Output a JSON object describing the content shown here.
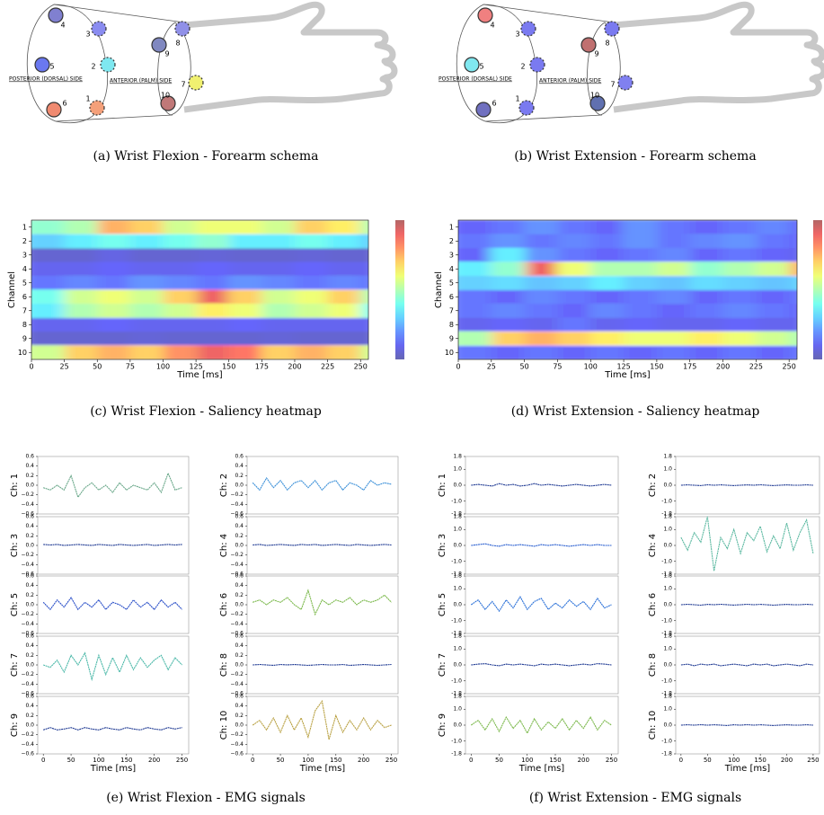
{
  "schemas": [
    {
      "caption": "(a) Wrist Flexion - Forearm schema",
      "posterior_label": "POSTERIOR (DORSAL) SIDE",
      "anterior_label": "ANTERIOR (PALM) SIDE",
      "electrodes": [
        {
          "label": "1",
          "color": "#f4a07a"
        },
        {
          "label": "2",
          "color": "#7ee8f0"
        },
        {
          "label": "3",
          "color": "#8a8cf0"
        },
        {
          "label": "4",
          "color": "#8080d0"
        },
        {
          "label": "5",
          "color": "#6a78f0"
        },
        {
          "label": "6",
          "color": "#f08a70"
        },
        {
          "label": "7",
          "color": "#f0f070"
        },
        {
          "label": "8",
          "color": "#9090e8"
        },
        {
          "label": "9",
          "color": "#8088c0"
        },
        {
          "label": "10",
          "color": "#c07878"
        }
      ]
    },
    {
      "caption": "(b) Wrist Extension - Forearm schema",
      "posterior_label": "POSTERIOR (DORSAL) SIDE",
      "anterior_label": "ANTERIOR (PALM) SIDE",
      "electrodes": [
        {
          "label": "1",
          "color": "#7a7af0"
        },
        {
          "label": "2",
          "color": "#7a7af0"
        },
        {
          "label": "3",
          "color": "#7a7af0"
        },
        {
          "label": "4",
          "color": "#f08080"
        },
        {
          "label": "5",
          "color": "#80e8f0"
        },
        {
          "label": "6",
          "color": "#7070c0"
        },
        {
          "label": "7",
          "color": "#8080f0"
        },
        {
          "label": "8",
          "color": "#7a7af0"
        },
        {
          "label": "9",
          "color": "#c07070"
        },
        {
          "label": "10",
          "color": "#6070b0"
        }
      ]
    }
  ],
  "chart_data": [
    {
      "type": "heatmap",
      "caption": "(c) Wrist Flexion - Saliency heatmap",
      "xlabel": "Time [ms]",
      "ylabel": "Channel",
      "colormap": "jet",
      "zlim": [
        0,
        1
      ],
      "categories": [
        "1",
        "2",
        "3",
        "4",
        "5",
        "6",
        "7",
        "8",
        "9",
        "10"
      ],
      "x": [
        0,
        25,
        50,
        75,
        100,
        125,
        150,
        175,
        200,
        225,
        250
      ],
      "xlim": [
        0,
        256
      ],
      "xticks": [
        0,
        25,
        50,
        75,
        100,
        125,
        150,
        175,
        200,
        225,
        250
      ],
      "z": [
        [
          0.45,
          0.5,
          0.75,
          0.7,
          0.55,
          0.6,
          0.6,
          0.55,
          0.7,
          0.65,
          0.5
        ],
        [
          0.3,
          0.35,
          0.4,
          0.35,
          0.4,
          0.45,
          0.35,
          0.35,
          0.4,
          0.35,
          0.3
        ],
        [
          0.05,
          0.05,
          0.08,
          0.05,
          0.05,
          0.06,
          0.05,
          0.05,
          0.06,
          0.05,
          0.05
        ],
        [
          0.1,
          0.1,
          0.12,
          0.1,
          0.1,
          0.12,
          0.1,
          0.1,
          0.12,
          0.1,
          0.1
        ],
        [
          0.15,
          0.18,
          0.15,
          0.2,
          0.18,
          0.15,
          0.2,
          0.18,
          0.15,
          0.18,
          0.15
        ],
        [
          0.4,
          0.55,
          0.6,
          0.55,
          0.7,
          0.9,
          0.7,
          0.55,
          0.6,
          0.7,
          0.5
        ],
        [
          0.35,
          0.5,
          0.55,
          0.5,
          0.55,
          0.65,
          0.6,
          0.5,
          0.55,
          0.6,
          0.4
        ],
        [
          0.1,
          0.1,
          0.12,
          0.1,
          0.1,
          0.1,
          0.12,
          0.1,
          0.1,
          0.1,
          0.1
        ],
        [
          0.05,
          0.05,
          0.05,
          0.06,
          0.05,
          0.05,
          0.05,
          0.06,
          0.05,
          0.05,
          0.05
        ],
        [
          0.55,
          0.7,
          0.75,
          0.7,
          0.8,
          0.9,
          0.85,
          0.7,
          0.75,
          0.7,
          0.55
        ]
      ]
    },
    {
      "type": "heatmap",
      "caption": "(d) Wrist Extension - Saliency heatmap",
      "xlabel": "Time [ms]",
      "ylabel": "Channel",
      "colormap": "jet",
      "zlim": [
        0,
        1
      ],
      "categories": [
        "1",
        "2",
        "3",
        "4",
        "5",
        "6",
        "7",
        "8",
        "9",
        "10"
      ],
      "x": [
        0,
        25,
        50,
        75,
        100,
        125,
        150,
        175,
        200,
        225,
        250
      ],
      "xlim": [
        0,
        256
      ],
      "xticks": [
        0,
        25,
        50,
        75,
        100,
        125,
        150,
        175,
        200,
        225,
        250
      ],
      "z": [
        [
          0.12,
          0.15,
          0.2,
          0.15,
          0.12,
          0.2,
          0.15,
          0.12,
          0.15,
          0.18,
          0.12
        ],
        [
          0.15,
          0.2,
          0.15,
          0.18,
          0.15,
          0.2,
          0.15,
          0.18,
          0.2,
          0.15,
          0.12
        ],
        [
          0.12,
          0.35,
          0.2,
          0.15,
          0.12,
          0.15,
          0.18,
          0.12,
          0.15,
          0.12,
          0.1
        ],
        [
          0.35,
          0.45,
          0.9,
          0.6,
          0.5,
          0.5,
          0.55,
          0.45,
          0.5,
          0.55,
          0.75
        ],
        [
          0.3,
          0.32,
          0.28,
          0.3,
          0.35,
          0.3,
          0.28,
          0.32,
          0.3,
          0.28,
          0.3
        ],
        [
          0.15,
          0.12,
          0.18,
          0.15,
          0.12,
          0.15,
          0.18,
          0.12,
          0.15,
          0.12,
          0.15
        ],
        [
          0.15,
          0.18,
          0.15,
          0.12,
          0.18,
          0.15,
          0.12,
          0.15,
          0.18,
          0.15,
          0.12
        ],
        [
          0.1,
          0.12,
          0.1,
          0.15,
          0.1,
          0.12,
          0.1,
          0.1,
          0.12,
          0.1,
          0.1
        ],
        [
          0.5,
          0.7,
          0.75,
          0.7,
          0.65,
          0.6,
          0.6,
          0.65,
          0.6,
          0.55,
          0.5
        ],
        [
          0.15,
          0.12,
          0.15,
          0.12,
          0.15,
          0.12,
          0.15,
          0.12,
          0.15,
          0.12,
          0.15
        ]
      ]
    },
    {
      "type": "line-grid",
      "caption": "(e) Wrist Flexion - EMG signals",
      "xlabel": "Time [ms]",
      "x": [
        0,
        12.5,
        25,
        37.5,
        50,
        62.5,
        75,
        87.5,
        100,
        112.5,
        125,
        137.5,
        150,
        162.5,
        175,
        187.5,
        200,
        212.5,
        225,
        237.5,
        250
      ],
      "xlim": [
        -10,
        262
      ],
      "xticks": [
        0,
        50,
        100,
        150,
        200,
        250
      ],
      "ylim": [
        -0.6,
        0.6
      ],
      "yticks": [
        0.6,
        0.4,
        0.2,
        {
          "value": 0,
          "label": "0.0"
        },
        {
          "value": -0.2,
          "label": "−0.2"
        },
        {
          "value": -0.4,
          "label": "−0.4"
        },
        {
          "value": -0.6,
          "label": "−0.6"
        }
      ],
      "series": [
        {
          "name": "Ch: 1",
          "color": "#6aa88a",
          "values": [
            -0.05,
            -0.1,
            0,
            -0.1,
            0.2,
            -0.25,
            -0.05,
            0.05,
            -0.1,
            0,
            -0.15,
            0.05,
            -0.1,
            0,
            -0.05,
            -0.1,
            0.05,
            -0.15,
            0.25,
            -0.1,
            -0.05
          ]
        },
        {
          "name": "Ch: 2",
          "color": "#3a8fd8",
          "values": [
            0.05,
            -0.1,
            0.15,
            -0.05,
            0.1,
            -0.1,
            0.05,
            0.1,
            -0.05,
            0.1,
            -0.1,
            0.05,
            0.1,
            -0.1,
            0.05,
            0,
            -0.1,
            0.1,
            0,
            0.05,
            0.02
          ]
        },
        {
          "name": "Ch: 3",
          "color": "#1f3a93",
          "values": [
            0.02,
            0.01,
            0.02,
            0,
            0.01,
            0.02,
            0.01,
            0,
            0.02,
            0.01,
            0,
            0.02,
            0.01,
            0,
            0.01,
            0.02,
            0,
            0.01,
            0.02,
            0.01,
            0.02
          ]
        },
        {
          "name": "Ch: 4",
          "color": "#1f3a93",
          "values": [
            0.01,
            0.02,
            0,
            0.01,
            0.02,
            0.01,
            0,
            0.02,
            0.01,
            0.02,
            0,
            0.01,
            0.02,
            0.01,
            0,
            0.02,
            0.01,
            0,
            0.01,
            0.02,
            0.01
          ]
        },
        {
          "name": "Ch: 5",
          "color": "#2a4fc8",
          "values": [
            0.05,
            -0.1,
            0.1,
            -0.05,
            0.15,
            -0.1,
            0.05,
            -0.05,
            0.1,
            -0.1,
            0.05,
            0,
            -0.1,
            0.1,
            -0.05,
            0.05,
            -0.1,
            0.1,
            -0.05,
            0.05,
            -0.1
          ]
        },
        {
          "name": "Ch: 6",
          "color": "#7ab84a",
          "values": [
            0.05,
            0.1,
            0,
            0.1,
            0.05,
            0.15,
            0,
            -0.1,
            0.3,
            -0.2,
            0.1,
            0,
            0.1,
            0.05,
            0.15,
            0,
            0.1,
            0.05,
            0.1,
            0.2,
            0.05
          ]
        },
        {
          "name": "Ch: 7",
          "color": "#4ab8a8",
          "values": [
            0,
            -0.05,
            0.1,
            -0.15,
            0.2,
            0,
            0.25,
            -0.3,
            0.2,
            -0.2,
            0.15,
            -0.15,
            0.2,
            -0.1,
            0.15,
            -0.05,
            0.1,
            0.2,
            -0.1,
            0.15,
            0
          ]
        },
        {
          "name": "Ch: 8",
          "color": "#1f3a93",
          "values": [
            0,
            0.01,
            0,
            -0.01,
            0.01,
            0,
            0.01,
            0,
            -0.01,
            0,
            0.01,
            0,
            0,
            0.01,
            -0.01,
            0,
            0.01,
            0,
            -0.01,
            0,
            0.01
          ]
        },
        {
          "name": "Ch: 9",
          "color": "#1f3a93",
          "values": [
            -0.1,
            -0.05,
            -0.1,
            -0.08,
            -0.05,
            -0.1,
            -0.05,
            -0.08,
            -0.1,
            -0.05,
            -0.08,
            -0.1,
            -0.05,
            -0.08,
            -0.1,
            -0.05,
            -0.08,
            -0.1,
            -0.05,
            -0.08,
            -0.05
          ]
        },
        {
          "name": "Ch: 10",
          "color": "#b8a040",
          "values": [
            0,
            0.1,
            -0.1,
            0.15,
            -0.15,
            0.2,
            -0.1,
            0.15,
            -0.25,
            0.3,
            0.5,
            -0.3,
            0.2,
            -0.15,
            0.1,
            -0.1,
            0.15,
            -0.1,
            0.1,
            -0.05,
            0
          ]
        }
      ]
    },
    {
      "type": "line-grid",
      "caption": "(f) Wrist Extension - EMG signals",
      "xlabel": "Time [ms]",
      "x": [
        0,
        12.5,
        25,
        37.5,
        50,
        62.5,
        75,
        87.5,
        100,
        112.5,
        125,
        137.5,
        150,
        162.5,
        175,
        187.5,
        200,
        212.5,
        225,
        237.5,
        250
      ],
      "xlim": [
        -10,
        262
      ],
      "xticks": [
        0,
        50,
        100,
        150,
        200,
        250
      ],
      "ylim": [
        -1.8,
        1.8
      ],
      "yticks": [
        1.8,
        {
          "value": 1,
          "label": "1.0"
        },
        {
          "value": 0,
          "label": "0.0"
        },
        {
          "value": -1,
          "label": "-1.0"
        },
        -1.8
      ],
      "series": [
        {
          "name": "Ch: 1",
          "color": "#1f3a93",
          "values": [
            0,
            0.05,
            0,
            -0.05,
            0.1,
            0,
            0.05,
            -0.05,
            0,
            0.1,
            0,
            0.05,
            0,
            -0.05,
            0,
            0.05,
            0,
            -0.05,
            0,
            0.05,
            0
          ]
        },
        {
          "name": "Ch: 2",
          "color": "#1f3a93",
          "values": [
            0,
            0.02,
            0,
            -0.02,
            0.03,
            0,
            0.02,
            0,
            -0.02,
            0,
            0.02,
            0,
            0.03,
            0,
            -0.02,
            0,
            0.02,
            0,
            0,
            0.02,
            0
          ]
        },
        {
          "name": "Ch: 3",
          "color": "#2a5fd0",
          "values": [
            0,
            0.05,
            0.1,
            0,
            -0.05,
            0.05,
            0,
            0.05,
            0,
            -0.05,
            0.05,
            0,
            0.05,
            0,
            -0.05,
            0,
            0.05,
            0,
            0.05,
            0,
            0
          ]
        },
        {
          "name": "Ch: 4",
          "color": "#5ab8a0",
          "values": [
            0.5,
            -0.3,
            0.8,
            0.2,
            1.8,
            -1.6,
            0.5,
            -0.2,
            1,
            -0.5,
            0.8,
            0.3,
            1.2,
            -0.4,
            0.6,
            -0.2,
            1.4,
            -0.3,
            0.8,
            1.6,
            -0.5
          ]
        },
        {
          "name": "Ch: 5",
          "color": "#2a70d8",
          "values": [
            0,
            0.3,
            -0.3,
            0.2,
            -0.4,
            0.3,
            -0.2,
            0.5,
            -0.3,
            0.2,
            0.4,
            -0.3,
            0.1,
            -0.2,
            0.3,
            -0.1,
            0.2,
            -0.3,
            0.4,
            -0.2,
            0
          ]
        },
        {
          "name": "Ch: 6",
          "color": "#1f3a93",
          "values": [
            0,
            0.03,
            0,
            -0.03,
            0.02,
            0,
            0.03,
            0,
            -0.02,
            0,
            0.03,
            0,
            0.02,
            0,
            -0.03,
            0,
            0.02,
            0,
            0,
            0.03,
            0
          ]
        },
        {
          "name": "Ch: 7",
          "color": "#1f3a93",
          "values": [
            0,
            0.05,
            0.08,
            0,
            -0.05,
            0.05,
            0,
            0.05,
            0,
            -0.05,
            0.05,
            0,
            0.05,
            0,
            -0.05,
            0,
            0.05,
            0,
            0.08,
            0.05,
            0
          ]
        },
        {
          "name": "Ch: 8",
          "color": "#1f3a93",
          "values": [
            0,
            0.05,
            -0.05,
            0.05,
            0,
            0.05,
            -0.05,
            0,
            0.05,
            0,
            -0.05,
            0.05,
            0,
            0.05,
            -0.05,
            0,
            0.05,
            0,
            -0.05,
            0.05,
            0
          ]
        },
        {
          "name": "Ch: 9",
          "color": "#7ab84a",
          "values": [
            0,
            0.3,
            -0.3,
            0.4,
            -0.4,
            0.5,
            -0.2,
            0.3,
            -0.5,
            0.4,
            -0.3,
            0.2,
            -0.2,
            0.4,
            -0.3,
            0.3,
            -0.2,
            0.5,
            -0.3,
            0.3,
            0
          ]
        },
        {
          "name": "Ch: 10",
          "color": "#1f3a93",
          "values": [
            0,
            0.02,
            0,
            0.03,
            0,
            0.02,
            0,
            -0.02,
            0.02,
            0,
            0.03,
            0,
            0.02,
            0,
            -0.02,
            0,
            0.02,
            0,
            0,
            0.02,
            0
          ]
        }
      ]
    }
  ]
}
